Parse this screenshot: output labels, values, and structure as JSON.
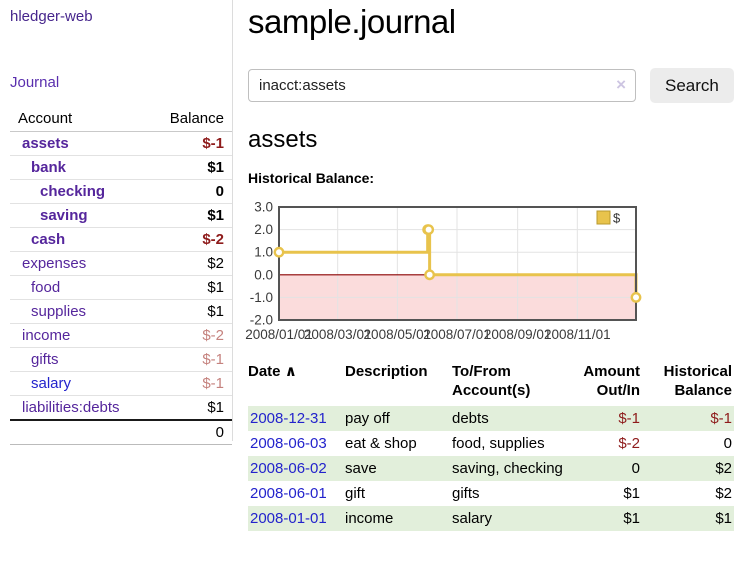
{
  "sidebar": {
    "app_title": "hledger-web",
    "journal_label": "Journal",
    "accounts_table": {
      "headers": {
        "account": "Account",
        "balance": "Balance"
      },
      "rows": [
        {
          "label": "assets",
          "indent": 0,
          "strong": true,
          "balance": "$-1"
        },
        {
          "label": "bank",
          "indent": 1,
          "strong": true,
          "balance": "$1"
        },
        {
          "label": "checking",
          "indent": 2,
          "strong": true,
          "balance": "0"
        },
        {
          "label": "saving",
          "indent": 2,
          "strong": true,
          "balance": "$1"
        },
        {
          "label": "cash",
          "indent": 1,
          "strong": true,
          "balance": "$-2"
        },
        {
          "label": "expenses",
          "indent": 0,
          "strong": false,
          "balance": "$2"
        },
        {
          "label": "food",
          "indent": 1,
          "strong": false,
          "balance": "$1"
        },
        {
          "label": "supplies",
          "indent": 1,
          "strong": false,
          "balance": "$1"
        },
        {
          "label": "income",
          "indent": 0,
          "strong": false,
          "balance": "$-2"
        },
        {
          "label": "gifts",
          "indent": 1,
          "strong": false,
          "balance": "$-1"
        },
        {
          "label": "salary",
          "indent": 1,
          "strong": false,
          "balance": "$-1",
          "blue": true
        },
        {
          "label": "liabilities:debts",
          "indent": 0,
          "strong": false,
          "balance": "$1"
        }
      ],
      "total": "0"
    }
  },
  "main": {
    "title": "sample.journal",
    "search": {
      "value": "inacct:assets",
      "clear_icon": "×",
      "button_label": "Search",
      "help_label": "?"
    },
    "account_heading": "assets",
    "chart_heading": "Historical Balance:",
    "register": {
      "columns": [
        {
          "label": "Date",
          "sort": "∧"
        },
        {
          "label": "Description"
        },
        {
          "label": "To/From Account(s)"
        },
        {
          "label": "Amount Out/In",
          "align": "right"
        },
        {
          "label": "Historical Balance",
          "align": "right"
        }
      ],
      "rows": [
        {
          "date": "2008-12-31",
          "description": "pay off",
          "accounts": "debts",
          "amount": "$-1",
          "balance": "$-1"
        },
        {
          "date": "2008-06-03",
          "description": "eat & shop",
          "accounts": "food, supplies",
          "amount": "$-2",
          "balance": "0"
        },
        {
          "date": "2008-06-02",
          "description": "save",
          "accounts": "saving, checking",
          "amount": "0",
          "balance": "$2"
        },
        {
          "date": "2008-06-01",
          "description": "gift",
          "accounts": "gifts",
          "amount": "$1",
          "balance": "$2"
        },
        {
          "date": "2008-01-01",
          "description": "income",
          "accounts": "salary",
          "amount": "$1",
          "balance": "$1"
        }
      ]
    }
  },
  "chart_data": {
    "type": "line",
    "style": "step",
    "title": "Historical Balance",
    "series": [
      {
        "name": "$",
        "color": "#e8c34c",
        "points": [
          [
            "2008-01-01",
            1
          ],
          [
            "2008-06-01",
            2
          ],
          [
            "2008-06-02",
            2
          ],
          [
            "2008-06-03",
            0
          ],
          [
            "2008-12-31",
            -1
          ]
        ]
      }
    ],
    "x_range": [
      "2008-01-01",
      "2008-12-31"
    ],
    "ylim": [
      -2,
      3
    ],
    "y_ticks": [
      "3.0",
      "2.0",
      "1.0",
      "0.0",
      "-1.0",
      "-2.0"
    ],
    "x_ticks": [
      "2008/01/01",
      "2008/03/01",
      "2008/05/01",
      "2008/07/01",
      "2008/09/01",
      "2008/11/01"
    ],
    "grid": true,
    "legend_position": "top-right",
    "zero_line_color": "#8b0000",
    "negative_region_color": "#fbdcdc",
    "grid_color": "#e3e3e3",
    "border_color": "#545454"
  },
  "colors": {
    "link_purple": "#55269c",
    "link_blue": "#2323cc",
    "negative_strong": "#8e1b1b",
    "negative_light": "#c5827e",
    "row_green": "#e2efdb",
    "button_gray": "#ececec"
  }
}
